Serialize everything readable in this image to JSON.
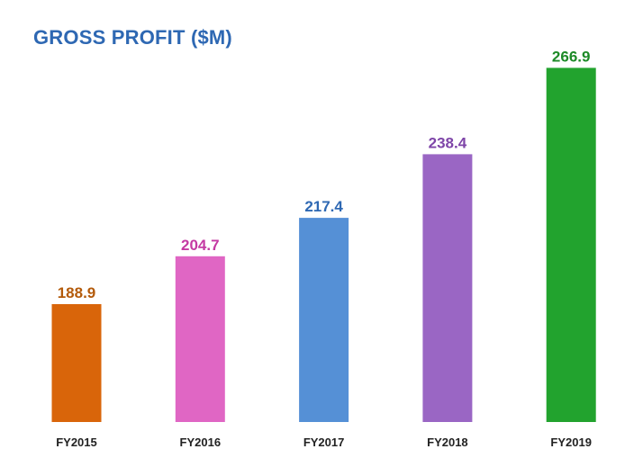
{
  "chart_data": {
    "type": "bar",
    "title": "GROSS PROFIT ($M)",
    "xlabel": "",
    "ylabel": "",
    "categories": [
      "FY2015",
      "FY2016",
      "FY2017",
      "FY2018",
      "FY2019"
    ],
    "values": [
      188.9,
      204.7,
      217.4,
      238.4,
      266.9
    ],
    "value_labels": [
      "188.9",
      "204.7",
      "217.4",
      "238.4",
      "266.9"
    ],
    "colors": [
      "#d9650a",
      "#e066c4",
      "#5590d6",
      "#9a66c4",
      "#22a32e"
    ],
    "label_colors": [
      "#b35a0a",
      "#c43aa3",
      "#2e68b3",
      "#7e45a8",
      "#1d8a27"
    ],
    "title_color": "#2e68b3",
    "ylim": [
      150,
      270
    ],
    "grid": false,
    "legend": "none"
  }
}
